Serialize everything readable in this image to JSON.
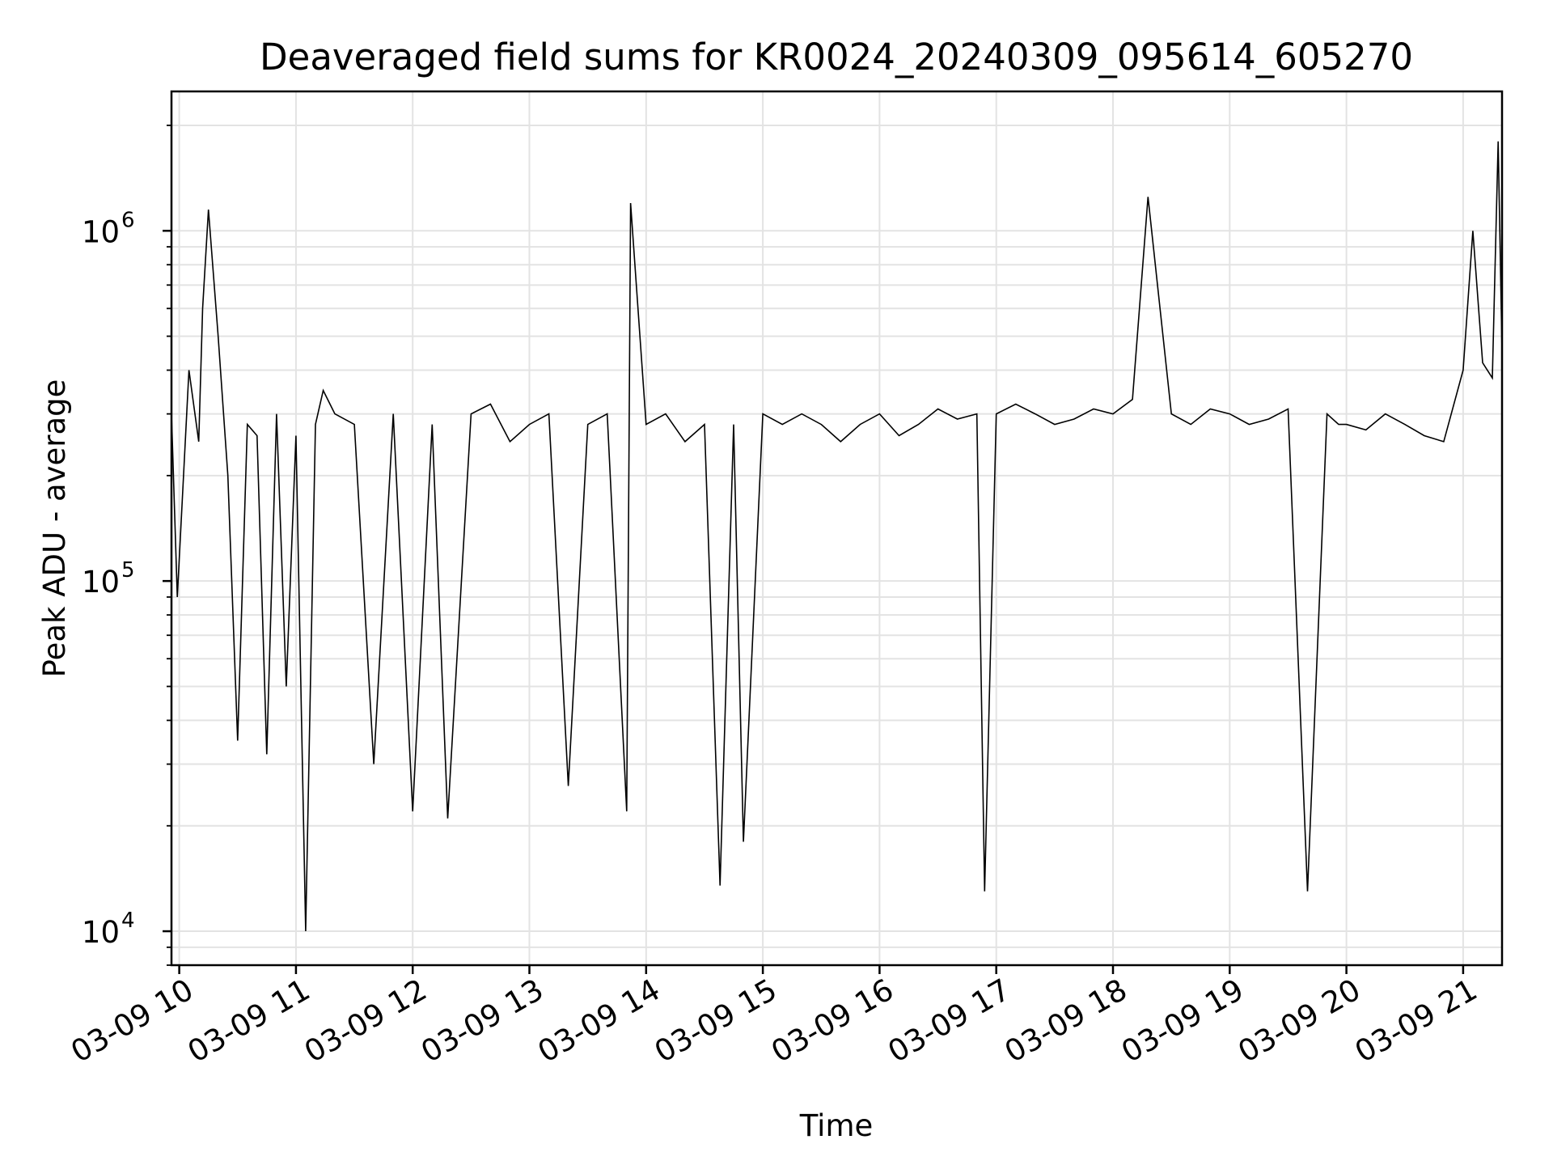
{
  "chart_data": {
    "type": "line",
    "title": "Deaveraged field sums for KR0024_20240309_095614_605270",
    "xlabel": "Time",
    "ylabel": "Peak ADU - average",
    "y_scale": "log",
    "ylim": [
      8000,
      2500000
    ],
    "y_ticks": [
      {
        "value": 10000,
        "base": "10",
        "exp": "4"
      },
      {
        "value": 100000,
        "base": "10",
        "exp": "5"
      },
      {
        "value": 1000000,
        "base": "10",
        "exp": "6"
      }
    ],
    "xlim": [
      "2024-03-09 09:56",
      "2024-03-09 21:20"
    ],
    "x_ticks": [
      {
        "value": "2024-03-09 10:00",
        "label": "03-09 10"
      },
      {
        "value": "2024-03-09 11:00",
        "label": "03-09 11"
      },
      {
        "value": "2024-03-09 12:00",
        "label": "03-09 12"
      },
      {
        "value": "2024-03-09 13:00",
        "label": "03-09 13"
      },
      {
        "value": "2024-03-09 14:00",
        "label": "03-09 14"
      },
      {
        "value": "2024-03-09 15:00",
        "label": "03-09 15"
      },
      {
        "value": "2024-03-09 16:00",
        "label": "03-09 16"
      },
      {
        "value": "2024-03-09 17:00",
        "label": "03-09 17"
      },
      {
        "value": "2024-03-09 18:00",
        "label": "03-09 18"
      },
      {
        "value": "2024-03-09 19:00",
        "label": "03-09 19"
      },
      {
        "value": "2024-03-09 20:00",
        "label": "03-09 20"
      },
      {
        "value": "2024-03-09 21:00",
        "label": "03-09 21"
      }
    ],
    "grid": true,
    "line_color": "#000000",
    "series": [
      {
        "x": [
          "2024-03-09 09:56",
          "2024-03-09 09:59",
          "2024-03-09 10:05",
          "2024-03-09 10:10",
          "2024-03-09 10:12",
          "2024-03-09 10:15",
          "2024-03-09 10:20",
          "2024-03-09 10:25",
          "2024-03-09 10:30",
          "2024-03-09 10:35",
          "2024-03-09 10:40",
          "2024-03-09 10:45",
          "2024-03-09 10:50",
          "2024-03-09 10:55",
          "2024-03-09 11:00",
          "2024-03-09 11:05",
          "2024-03-09 11:10",
          "2024-03-09 11:14",
          "2024-03-09 11:20",
          "2024-03-09 11:30",
          "2024-03-09 11:40",
          "2024-03-09 11:50",
          "2024-03-09 12:00",
          "2024-03-09 12:10",
          "2024-03-09 12:18",
          "2024-03-09 12:30",
          "2024-03-09 12:40",
          "2024-03-09 12:50",
          "2024-03-09 13:00",
          "2024-03-09 13:10",
          "2024-03-09 13:20",
          "2024-03-09 13:30",
          "2024-03-09 13:40",
          "2024-03-09 13:50",
          "2024-03-09 13:52",
          "2024-03-09 14:00",
          "2024-03-09 14:10",
          "2024-03-09 14:20",
          "2024-03-09 14:30",
          "2024-03-09 14:38",
          "2024-03-09 14:45",
          "2024-03-09 14:50",
          "2024-03-09 15:00",
          "2024-03-09 15:10",
          "2024-03-09 15:20",
          "2024-03-09 15:30",
          "2024-03-09 15:40",
          "2024-03-09 15:50",
          "2024-03-09 16:00",
          "2024-03-09 16:10",
          "2024-03-09 16:20",
          "2024-03-09 16:30",
          "2024-03-09 16:40",
          "2024-03-09 16:50",
          "2024-03-09 16:54",
          "2024-03-09 17:00",
          "2024-03-09 17:10",
          "2024-03-09 17:20",
          "2024-03-09 17:30",
          "2024-03-09 17:40",
          "2024-03-09 17:50",
          "2024-03-09 18:00",
          "2024-03-09 18:10",
          "2024-03-09 18:18",
          "2024-03-09 18:30",
          "2024-03-09 18:40",
          "2024-03-09 18:50",
          "2024-03-09 19:00",
          "2024-03-09 19:10",
          "2024-03-09 19:20",
          "2024-03-09 19:30",
          "2024-03-09 19:40",
          "2024-03-09 19:50",
          "2024-03-09 19:56",
          "2024-03-09 20:00",
          "2024-03-09 20:10",
          "2024-03-09 20:20",
          "2024-03-09 20:30",
          "2024-03-09 20:40",
          "2024-03-09 20:50",
          "2024-03-09 21:00",
          "2024-03-09 21:05",
          "2024-03-09 21:10",
          "2024-03-09 21:15",
          "2024-03-09 21:18",
          "2024-03-09 21:20"
        ],
        "y": [
          300000,
          90000,
          400000,
          250000,
          600000,
          1150000,
          500000,
          200000,
          35000,
          280000,
          260000,
          32000,
          300000,
          50000,
          260000,
          10000,
          280000,
          350000,
          300000,
          280000,
          30000,
          300000,
          22000,
          280000,
          21000,
          300000,
          320000,
          250000,
          280000,
          300000,
          26000,
          280000,
          300000,
          22000,
          1200000,
          280000,
          300000,
          250000,
          280000,
          13500,
          280000,
          18000,
          300000,
          280000,
          300000,
          280000,
          250000,
          280000,
          300000,
          260000,
          280000,
          310000,
          290000,
          300000,
          13000,
          300000,
          320000,
          300000,
          280000,
          290000,
          310000,
          300000,
          330000,
          1250000,
          300000,
          280000,
          310000,
          300000,
          280000,
          290000,
          310000,
          13000,
          300000,
          280000,
          280000,
          270000,
          300000,
          280000,
          260000,
          250000,
          400000,
          1000000,
          420000,
          380000,
          1800000,
          450000
        ]
      }
    ]
  }
}
